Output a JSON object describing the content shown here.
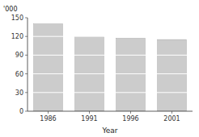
{
  "chart_data": {
    "type": "bar",
    "xlabel": "Year",
    "ylabel": "'000",
    "categories": [
      "1986",
      "1991",
      "1996",
      "2001"
    ],
    "values": [
      140,
      120,
      117,
      115
    ],
    "color": "#cccccc",
    "ylim": [
      0,
      150
    ],
    "yticks": [
      0,
      30,
      60,
      90,
      120,
      150
    ],
    "grid": true
  }
}
